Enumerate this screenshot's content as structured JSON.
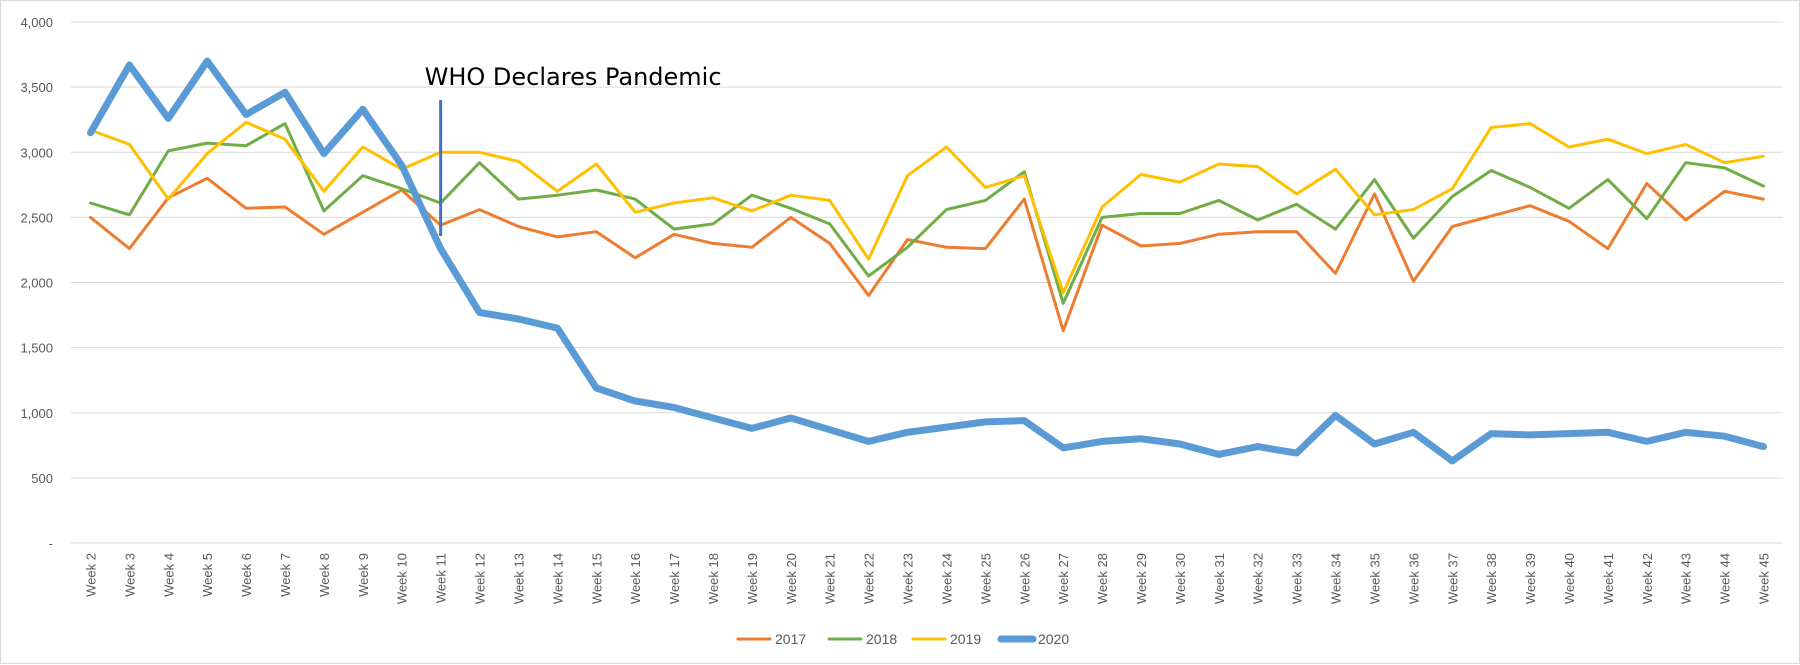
{
  "chart_data": {
    "type": "line",
    "title": "",
    "xlabel": "",
    "ylabel": "",
    "ylim": [
      0,
      4000
    ],
    "y_ticks": [
      {
        "value": 0,
        "label": "-"
      },
      {
        "value": 500,
        "label": "500"
      },
      {
        "value": 1000,
        "label": "1,000"
      },
      {
        "value": 1500,
        "label": "1,500"
      },
      {
        "value": 2000,
        "label": "2,000"
      },
      {
        "value": 2500,
        "label": "2,500"
      },
      {
        "value": 3000,
        "label": "3,000"
      },
      {
        "value": 3500,
        "label": "3,500"
      },
      {
        "value": 4000,
        "label": "4,000"
      }
    ],
    "grid": "horizontal",
    "legend_position": "bottom",
    "categories": [
      "Week 2",
      "Week 3",
      "Week 4",
      "Week 5",
      "Week 6",
      "Week 7",
      "Week 8",
      "Week 9",
      "Week 10",
      "Week 11",
      "Week 12",
      "Week 13",
      "Week 14",
      "Week 15",
      "Week 16",
      "Week 17",
      "Week 18",
      "Week 19",
      "Week 20",
      "Week 21",
      "Week 22",
      "Week 23",
      "Week 24",
      "Week 25",
      "Week 26",
      "Week 27",
      "Week 28",
      "Week 29",
      "Week 30",
      "Week 31",
      "Week 32",
      "Week 33",
      "Week 34",
      "Week 35",
      "Week 36",
      "Week 37",
      "Week 38",
      "Week 39",
      "Week 40",
      "Week 41",
      "Week 42",
      "Week 43",
      "Week 44",
      "Week 45"
    ],
    "series": [
      {
        "name": "2017",
        "color": "#ED7D31",
        "values": [
          2500,
          2260,
          2650,
          2800,
          2570,
          2580,
          2370,
          2540,
          2710,
          2440,
          2560,
          2430,
          2350,
          2390,
          2190,
          2370,
          2300,
          2270,
          2500,
          2300,
          1900,
          2330,
          2270,
          2260,
          2640,
          1630,
          2440,
          2280,
          2300,
          2370,
          2390,
          2390,
          2070,
          2680,
          2010,
          2430,
          2510,
          2590,
          2470,
          2260,
          2760,
          2480,
          2700,
          2640
        ]
      },
      {
        "name": "2018",
        "color": "#70AD47",
        "values": [
          2610,
          2520,
          3010,
          3070,
          3050,
          3220,
          2550,
          2820,
          2720,
          2610,
          2920,
          2640,
          2670,
          2710,
          2640,
          2410,
          2450,
          2670,
          2570,
          2450,
          2050,
          2270,
          2560,
          2630,
          2850,
          1840,
          2500,
          2530,
          2530,
          2630,
          2480,
          2600,
          2410,
          2790,
          2340,
          2660,
          2860,
          2730,
          2570,
          2790,
          2490,
          2920,
          2880,
          2740
        ]
      },
      {
        "name": "2019",
        "color": "#FFC000",
        "values": [
          3170,
          3060,
          2640,
          2990,
          3230,
          3100,
          2700,
          3040,
          2870,
          3000,
          3000,
          2930,
          2700,
          2910,
          2540,
          2610,
          2650,
          2550,
          2670,
          2630,
          2180,
          2820,
          3040,
          2730,
          2820,
          1920,
          2580,
          2830,
          2770,
          2910,
          2890,
          2680,
          2870,
          2520,
          2560,
          2720,
          3190,
          3220,
          3040,
          3100,
          2990,
          3060,
          2920,
          2970
        ]
      },
      {
        "name": "2020",
        "color": "#5B9BD5",
        "values": [
          3150,
          3670,
          3260,
          3700,
          3290,
          3460,
          2990,
          3330,
          2900,
          2260,
          1770,
          1720,
          1650,
          1190,
          1090,
          1040,
          960,
          880,
          960,
          870,
          780,
          850,
          890,
          930,
          940,
          730,
          780,
          800,
          760,
          680,
          740,
          690,
          980,
          760,
          850,
          630,
          840,
          830,
          840,
          850,
          780,
          850,
          820,
          740
        ]
      }
    ],
    "annotations": [
      {
        "text": "WHO Declares Pandemic",
        "at_category": "Week 11"
      }
    ]
  }
}
